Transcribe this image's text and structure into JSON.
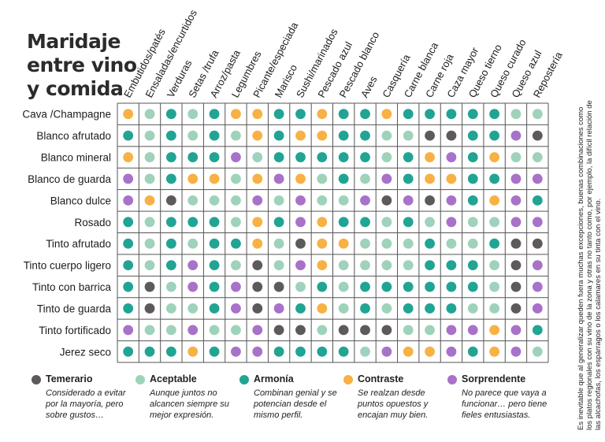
{
  "title_lines": [
    "Maridaje",
    "entre vino",
    "y comida"
  ],
  "chart_data": {
    "type": "heatmap",
    "columns": [
      "Embutidos/patés",
      "Ensaladas/encurtidos",
      "Verduras",
      "Setas /trufa",
      "Arroz/pasta",
      "Legumbres",
      "Picante/especiada",
      "Marisco",
      "Sushi/marinados",
      "Pescado azul",
      "Pescado blanco",
      "Aves",
      "Casquería",
      "Carne blanca",
      "Carne roja",
      "Caza mayor",
      "Queso tierno",
      "Queso curado",
      "Queso azul",
      "Repostería"
    ],
    "rows": [
      "Cava /Champagne",
      "Blanco afrutado",
      "Blanco mineral",
      "Blanco de guarda",
      "Blanco dulce",
      "Rosado",
      "Tinto afrutado",
      "Tinto cuerpo ligero",
      "Tinto con barrica",
      "Tinto de guarda",
      "Tinto fortificado",
      "Jerez seco"
    ],
    "categories": {
      "T": {
        "name": "Temerario",
        "color": "#5e5a59"
      },
      "A": {
        "name": "Aceptable",
        "color": "#9fd2bb"
      },
      "H": {
        "name": "Armonía",
        "color": "#21a493"
      },
      "C": {
        "name": "Contraste",
        "color": "#f7b144"
      },
      "S": {
        "name": "Sorprendente",
        "color": "#a872c8"
      }
    },
    "values": [
      [
        "C",
        "A",
        "H",
        "A",
        "H",
        "C",
        "C",
        "H",
        "H",
        "C",
        "H",
        "H",
        "C",
        "H",
        "H",
        "H",
        "H",
        "H",
        "A",
        "A"
      ],
      [
        "H",
        "A",
        "H",
        "A",
        "H",
        "A",
        "C",
        "H",
        "C",
        "C",
        "H",
        "H",
        "A",
        "A",
        "T",
        "T",
        "H",
        "H",
        "S",
        "T"
      ],
      [
        "C",
        "A",
        "H",
        "H",
        "H",
        "S",
        "A",
        "H",
        "H",
        "H",
        "H",
        "H",
        "A",
        "H",
        "C",
        "S",
        "H",
        "C",
        "A",
        "A"
      ],
      [
        "S",
        "A",
        "H",
        "C",
        "C",
        "A",
        "C",
        "S",
        "C",
        "A",
        "H",
        "A",
        "S",
        "H",
        "C",
        "C",
        "H",
        "H",
        "S",
        "S"
      ],
      [
        "S",
        "C",
        "T",
        "A",
        "A",
        "A",
        "S",
        "A",
        "S",
        "A",
        "A",
        "S",
        "T",
        "S",
        "T",
        "S",
        "H",
        "C",
        "S",
        "H"
      ],
      [
        "H",
        "A",
        "H",
        "H",
        "H",
        "A",
        "C",
        "H",
        "S",
        "C",
        "H",
        "H",
        "A",
        "H",
        "A",
        "S",
        "A",
        "A",
        "S",
        "S"
      ],
      [
        "H",
        "A",
        "H",
        "A",
        "H",
        "H",
        "C",
        "A",
        "T",
        "C",
        "C",
        "A",
        "A",
        "A",
        "H",
        "A",
        "A",
        "H",
        "T",
        "T"
      ],
      [
        "H",
        "A",
        "H",
        "S",
        "H",
        "A",
        "T",
        "A",
        "S",
        "C",
        "A",
        "A",
        "A",
        "A",
        "H",
        "H",
        "H",
        "A",
        "T",
        "S"
      ],
      [
        "H",
        "T",
        "A",
        "S",
        "H",
        "S",
        "T",
        "T",
        "A",
        "H",
        "A",
        "H",
        "H",
        "H",
        "H",
        "H",
        "H",
        "A",
        "T",
        "S"
      ],
      [
        "H",
        "T",
        "A",
        "A",
        "H",
        "S",
        "T",
        "S",
        "H",
        "C",
        "A",
        "H",
        "A",
        "H",
        "H",
        "H",
        "A",
        "A",
        "T",
        "S"
      ],
      [
        "S",
        "A",
        "A",
        "S",
        "A",
        "A",
        "S",
        "T",
        "T",
        "A",
        "T",
        "T",
        "T",
        "A",
        "A",
        "S",
        "S",
        "C",
        "S",
        "H"
      ],
      [
        "H",
        "H",
        "H",
        "C",
        "H",
        "S",
        "S",
        "H",
        "H",
        "H",
        "H",
        "A",
        "S",
        "C",
        "C",
        "S",
        "H",
        "C",
        "S",
        "A"
      ]
    ]
  },
  "legend": [
    {
      "key": "T",
      "name": "Temerario",
      "description": "Considerado a evitar por la mayoría, pero sobre gustos…"
    },
    {
      "key": "A",
      "name": "Aceptable",
      "description": "Aunque juntos no alcancen siempre su mejor expresión."
    },
    {
      "key": "H",
      "name": "Armonía",
      "description": "Combinan genial y se potencian desde el mismo perfil."
    },
    {
      "key": "C",
      "name": "Contraste",
      "description": "Se realzan desde puntos opuestos y encajan muy bien."
    },
    {
      "key": "S",
      "name": "Sorprendente",
      "description": "No parece que vaya a funcionar… pero tiene fieles entusiastas."
    }
  ],
  "side_note": "Es inevitable que al generalizar queden fuera muchas excepciones, buenas combinaciones como los platos regionales con su vino de la zona y otras no tanto como, por ejemplo, la difícil relación de las alcachofas, los espárragos o los calamares en su tinta con el vino."
}
